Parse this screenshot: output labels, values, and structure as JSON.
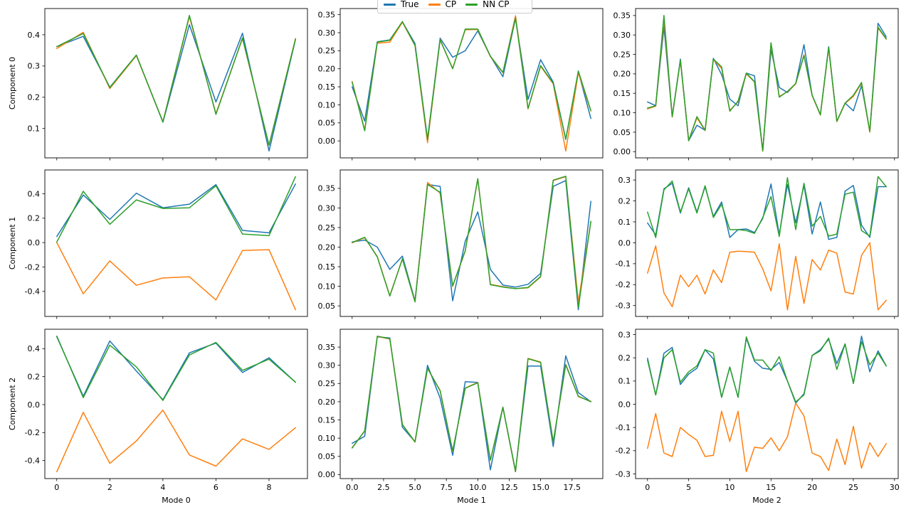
{
  "figure": {
    "background": "#ffffff",
    "legend": {
      "position": "top-center",
      "items": [
        {
          "label": "True",
          "color": "#1f77b4"
        },
        {
          "label": "CP",
          "color": "#ff7f0e"
        },
        {
          "label": "NN CP",
          "color": "#2ca02c"
        }
      ]
    }
  },
  "chart_data": [
    {
      "type": "line",
      "row": 0,
      "col": 0,
      "ylabel": "Component 0",
      "xlabel": "",
      "xlim": [
        -0.45,
        9.45
      ],
      "ylim": [
        0.006,
        0.484
      ],
      "xticks": [
        0,
        2,
        4,
        6,
        8
      ],
      "xtick_labels": null,
      "yticks": [
        0.1,
        0.2,
        0.3,
        0.4
      ],
      "ytick_labels": [
        "0.1",
        "0.2",
        "0.3",
        "0.4"
      ],
      "grid": false,
      "series": [
        {
          "name": "True",
          "color": "#1f77b4",
          "values": [
            0.362,
            0.395,
            0.232,
            0.335,
            0.12,
            0.432,
            0.185,
            0.405,
            0.028,
            0.385
          ]
        },
        {
          "name": "CP",
          "color": "#ff7f0e",
          "values": [
            0.356,
            0.408,
            0.228,
            0.333,
            0.122,
            0.458,
            0.148,
            0.388,
            0.046,
            0.388
          ]
        },
        {
          "name": "NN CP",
          "color": "#2ca02c",
          "values": [
            0.362,
            0.404,
            0.231,
            0.335,
            0.121,
            0.462,
            0.145,
            0.39,
            0.047,
            0.386
          ]
        }
      ]
    },
    {
      "type": "line",
      "row": 0,
      "col": 1,
      "ylabel": "",
      "xlabel": "",
      "xlim": [
        -0.95,
        19.95
      ],
      "ylim": [
        -0.047,
        0.367
      ],
      "xticks": [
        0,
        5,
        10,
        15
      ],
      "xtick_labels": null,
      "yticks": [
        0.0,
        0.05,
        0.1,
        0.15,
        0.2,
        0.25,
        0.3,
        0.35
      ],
      "ytick_labels": [
        "0.00",
        "0.05",
        "0.10",
        "0.15",
        "0.20",
        "0.25",
        "0.30",
        "0.35"
      ],
      "grid": false,
      "series": [
        {
          "name": "True",
          "color": "#1f77b4",
          "values": [
            0.15,
            0.055,
            0.275,
            0.28,
            0.33,
            0.27,
            0.005,
            0.285,
            0.232,
            0.25,
            0.305,
            0.235,
            0.178,
            0.34,
            0.115,
            0.225,
            0.163,
            0.005,
            0.192,
            0.062
          ]
        },
        {
          "name": "CP",
          "color": "#ff7f0e",
          "values": [
            0.165,
            0.03,
            0.271,
            0.274,
            0.329,
            0.264,
            -0.005,
            0.281,
            0.201,
            0.308,
            0.309,
            0.234,
            0.189,
            0.347,
            0.089,
            0.207,
            0.158,
            -0.028,
            0.189,
            0.083
          ]
        },
        {
          "name": "NN CP",
          "color": "#2ca02c",
          "values": [
            0.163,
            0.028,
            0.274,
            0.279,
            0.331,
            0.265,
            0.004,
            0.28,
            0.2,
            0.31,
            0.31,
            0.235,
            0.19,
            0.341,
            0.09,
            0.209,
            0.16,
            0.004,
            0.194,
            0.084
          ]
        }
      ]
    },
    {
      "type": "line",
      "row": 0,
      "col": 2,
      "ylabel": "",
      "xlabel": "",
      "xlim": [
        -1.45,
        30.45
      ],
      "ylim": [
        -0.016,
        0.368
      ],
      "xticks": [
        0,
        5,
        10,
        15,
        20,
        25,
        30
      ],
      "xtick_labels": null,
      "yticks": [
        0.0,
        0.05,
        0.1,
        0.15,
        0.2,
        0.25,
        0.3,
        0.35
      ],
      "ytick_labels": [
        "0.00",
        "0.05",
        "0.10",
        "0.15",
        "0.20",
        "0.25",
        "0.30",
        "0.35"
      ],
      "grid": false,
      "series": [
        {
          "name": "True",
          "color": "#1f77b4",
          "values": [
            0.128,
            0.118,
            0.32,
            0.09,
            0.238,
            0.028,
            0.068,
            0.055,
            0.24,
            0.198,
            0.135,
            0.118,
            0.202,
            0.195,
            0.002,
            0.262,
            0.165,
            0.152,
            0.175,
            0.275,
            0.145,
            0.095,
            0.27,
            0.078,
            0.125,
            0.105,
            0.17,
            0.052,
            0.33,
            0.295
          ]
        },
        {
          "name": "CP",
          "color": "#ff7f0e",
          "values": [
            0.11,
            0.117,
            0.34,
            0.089,
            0.234,
            0.028,
            0.087,
            0.054,
            0.237,
            0.214,
            0.106,
            0.128,
            0.2,
            0.179,
            0.001,
            0.277,
            0.142,
            0.154,
            0.174,
            0.249,
            0.144,
            0.094,
            0.266,
            0.077,
            0.124,
            0.142,
            0.176,
            0.05,
            0.318,
            0.289
          ]
        },
        {
          "name": "NN CP",
          "color": "#2ca02c",
          "values": [
            0.112,
            0.118,
            0.35,
            0.09,
            0.235,
            0.028,
            0.09,
            0.055,
            0.238,
            0.218,
            0.104,
            0.13,
            0.202,
            0.18,
            0.002,
            0.28,
            0.14,
            0.155,
            0.175,
            0.247,
            0.145,
            0.095,
            0.268,
            0.078,
            0.125,
            0.145,
            0.178,
            0.052,
            0.32,
            0.29
          ]
        }
      ]
    },
    {
      "type": "line",
      "row": 1,
      "col": 0,
      "ylabel": "Component 1",
      "xlabel": "",
      "xlim": [
        -0.45,
        9.45
      ],
      "ylim": [
        -0.605,
        0.595
      ],
      "xticks": [
        0,
        2,
        4,
        6,
        8
      ],
      "xtick_labels": null,
      "yticks": [
        -0.4,
        -0.2,
        0.0,
        0.2,
        0.4
      ],
      "ytick_labels": [
        "-0.4",
        "-0.2",
        "0.0",
        "0.2",
        "0.4"
      ],
      "grid": false,
      "series": [
        {
          "name": "True",
          "color": "#1f77b4",
          "values": [
            0.05,
            0.39,
            0.19,
            0.405,
            0.285,
            0.315,
            0.475,
            0.1,
            0.08,
            0.48
          ]
        },
        {
          "name": "CP",
          "color": "#ff7f0e",
          "values": [
            0.0,
            -0.42,
            -0.15,
            -0.35,
            -0.29,
            -0.28,
            -0.47,
            -0.065,
            -0.058,
            -0.55
          ]
        },
        {
          "name": "NN CP",
          "color": "#2ca02c",
          "values": [
            0.005,
            0.42,
            0.15,
            0.35,
            0.28,
            0.285,
            0.465,
            0.07,
            0.057,
            0.54
          ]
        }
      ]
    },
    {
      "type": "line",
      "row": 1,
      "col": 1,
      "ylabel": "",
      "xlabel": "",
      "xlim": [
        -0.95,
        19.95
      ],
      "ylim": [
        0.023,
        0.397
      ],
      "xticks": [
        0,
        5,
        10,
        15
      ],
      "xtick_labels": null,
      "yticks": [
        0.05,
        0.1,
        0.15,
        0.2,
        0.25,
        0.3,
        0.35
      ],
      "ytick_labels": [
        "0.05",
        "0.10",
        "0.15",
        "0.20",
        "0.25",
        "0.30",
        "0.35"
      ],
      "grid": false,
      "series": [
        {
          "name": "True",
          "color": "#1f77b4",
          "values": [
            0.213,
            0.218,
            0.2,
            0.143,
            0.177,
            0.063,
            0.36,
            0.355,
            0.063,
            0.215,
            0.29,
            0.143,
            0.103,
            0.098,
            0.105,
            0.133,
            0.355,
            0.37,
            0.04,
            0.317
          ]
        },
        {
          "name": "CP",
          "color": "#ff7f0e",
          "values": [
            0.211,
            0.224,
            0.176,
            0.076,
            0.17,
            0.061,
            0.365,
            0.338,
            0.1,
            0.19,
            0.374,
            0.105,
            0.099,
            0.094,
            0.096,
            0.124,
            0.37,
            0.38,
            0.06,
            0.265
          ]
        },
        {
          "name": "NN CP",
          "color": "#2ca02c",
          "values": [
            0.212,
            0.225,
            0.175,
            0.075,
            0.17,
            0.06,
            0.36,
            0.34,
            0.101,
            0.191,
            0.375,
            0.104,
            0.098,
            0.094,
            0.097,
            0.125,
            0.371,
            0.381,
            0.046,
            0.266
          ]
        }
      ]
    },
    {
      "type": "line",
      "row": 1,
      "col": 2,
      "ylabel": "",
      "xlabel": "",
      "xlim": [
        -1.45,
        30.45
      ],
      "ylim": [
        -0.352,
        0.348
      ],
      "xticks": [
        0,
        5,
        10,
        15,
        20,
        25,
        30
      ],
      "xtick_labels": null,
      "yticks": [
        -0.3,
        -0.2,
        -0.1,
        0.0,
        0.1,
        0.2,
        0.3
      ],
      "ytick_labels": [
        "-0.3",
        "-0.2",
        "-0.1",
        "0.0",
        "0.1",
        "0.2",
        "0.3"
      ],
      "grid": false,
      "series": [
        {
          "name": "True",
          "color": "#1f77b4",
          "values": [
            0.095,
            0.037,
            0.258,
            0.284,
            0.142,
            0.263,
            0.147,
            0.268,
            0.126,
            0.195,
            0.026,
            0.063,
            0.066,
            0.049,
            0.116,
            0.281,
            0.037,
            0.279,
            0.095,
            0.274,
            0.042,
            0.195,
            0.016,
            0.026,
            0.247,
            0.274,
            0.084,
            0.026,
            0.268,
            0.268
          ]
        },
        {
          "name": "CP",
          "color": "#ff7f0e",
          "values": [
            -0.145,
            -0.015,
            -0.24,
            -0.305,
            -0.155,
            -0.21,
            -0.155,
            -0.245,
            -0.13,
            -0.19,
            -0.045,
            -0.04,
            -0.042,
            -0.045,
            -0.125,
            -0.23,
            -0.005,
            -0.32,
            -0.065,
            -0.29,
            -0.08,
            -0.13,
            -0.035,
            -0.05,
            -0.235,
            -0.245,
            -0.06,
            0.0,
            -0.32,
            -0.275
          ]
        },
        {
          "name": "NN CP",
          "color": "#2ca02c",
          "values": [
            0.147,
            0.025,
            0.253,
            0.295,
            0.147,
            0.258,
            0.142,
            0.273,
            0.121,
            0.184,
            0.063,
            0.063,
            0.058,
            0.045,
            0.121,
            0.221,
            0.03,
            0.311,
            0.063,
            0.284,
            0.079,
            0.126,
            0.032,
            0.042,
            0.232,
            0.242,
            0.058,
            0.032,
            0.316,
            0.268
          ]
        }
      ]
    },
    {
      "type": "line",
      "row": 2,
      "col": 0,
      "ylabel": "Component 2",
      "xlabel": "Mode 0",
      "xlim": [
        -0.45,
        9.45
      ],
      "ylim": [
        -0.529,
        0.539
      ],
      "xticks": [
        0,
        2,
        4,
        6,
        8
      ],
      "xtick_labels": [
        "0",
        "2",
        "4",
        "6",
        "8"
      ],
      "yticks": [
        -0.4,
        -0.2,
        0.0,
        0.2,
        0.4
      ],
      "ytick_labels": [
        "-0.4",
        "-0.2",
        "0.0",
        "0.2",
        "0.4"
      ],
      "grid": false,
      "series": [
        {
          "name": "True",
          "color": "#1f77b4",
          "values": [
            0.485,
            0.06,
            0.455,
            0.24,
            0.035,
            0.37,
            0.44,
            0.23,
            0.335,
            0.16
          ]
        },
        {
          "name": "CP",
          "color": "#ff7f0e",
          "values": [
            -0.48,
            -0.055,
            -0.42,
            -0.26,
            -0.04,
            -0.36,
            -0.44,
            -0.245,
            -0.32,
            -0.165
          ]
        },
        {
          "name": "NN CP",
          "color": "#2ca02c",
          "values": [
            0.49,
            0.05,
            0.425,
            0.27,
            0.03,
            0.355,
            0.445,
            0.245,
            0.325,
            0.16
          ]
        }
      ]
    },
    {
      "type": "line",
      "row": 2,
      "col": 1,
      "ylabel": "",
      "xlabel": "Mode 1",
      "xlim": [
        -0.95,
        19.95
      ],
      "ylim": [
        -0.011,
        0.399
      ],
      "xticks": [
        0,
        2.5,
        5,
        7.5,
        10,
        12.5,
        15,
        17.5
      ],
      "xtick_labels": [
        "0.0",
        "2.5",
        "5.0",
        "7.5",
        "10.0",
        "12.5",
        "15.0",
        "17.5"
      ],
      "yticks": [
        0.0,
        0.05,
        0.1,
        0.15,
        0.2,
        0.25,
        0.3,
        0.35
      ],
      "ytick_labels": [
        "0.00",
        "0.05",
        "0.10",
        "0.15",
        "0.20",
        "0.25",
        "0.30",
        "0.35"
      ],
      "grid": false,
      "series": [
        {
          "name": "True",
          "color": "#1f77b4",
          "values": [
            0.086,
            0.105,
            0.378,
            0.375,
            0.13,
            0.09,
            0.3,
            0.21,
            0.053,
            0.255,
            0.253,
            0.013,
            0.185,
            0.01,
            0.298,
            0.298,
            0.077,
            0.326,
            0.225,
            0.2
          ]
        },
        {
          "name": "CP",
          "color": "#ff7f0e",
          "values": [
            0.074,
            0.119,
            0.379,
            0.372,
            0.138,
            0.089,
            0.291,
            0.231,
            0.064,
            0.238,
            0.253,
            0.039,
            0.184,
            0.008,
            0.319,
            0.309,
            0.089,
            0.303,
            0.214,
            0.201
          ]
        },
        {
          "name": "NN CP",
          "color": "#2ca02c",
          "values": [
            0.073,
            0.12,
            0.38,
            0.373,
            0.137,
            0.09,
            0.292,
            0.23,
            0.065,
            0.237,
            0.252,
            0.04,
            0.185,
            0.008,
            0.318,
            0.308,
            0.09,
            0.301,
            0.215,
            0.2
          ]
        }
      ]
    },
    {
      "type": "line",
      "row": 2,
      "col": 2,
      "ylabel": "",
      "xlabel": "Mode 2",
      "xlim": [
        -1.45,
        30.45
      ],
      "ylim": [
        -0.32,
        0.323
      ],
      "xticks": [
        0,
        5,
        10,
        15,
        20,
        25,
        30
      ],
      "xtick_labels": [
        "0",
        "5",
        "10",
        "15",
        "20",
        "25",
        "30"
      ],
      "yticks": [
        -0.3,
        -0.2,
        -0.1,
        0.0,
        0.1,
        0.2,
        0.3
      ],
      "ytick_labels": [
        "-0.3",
        "-0.2",
        "-0.1",
        "0.0",
        "0.1",
        "0.2",
        "0.3"
      ],
      "grid": false,
      "series": [
        {
          "name": "True",
          "color": "#1f77b4",
          "values": [
            0.198,
            0.04,
            0.22,
            0.245,
            0.085,
            0.13,
            0.155,
            0.235,
            0.195,
            0.03,
            0.16,
            0.03,
            0.285,
            0.185,
            0.155,
            0.15,
            0.18,
            0.1,
            0.005,
            0.045,
            0.21,
            0.235,
            0.28,
            0.175,
            0.26,
            0.09,
            0.293,
            0.14,
            0.23,
            0.165
          ]
        },
        {
          "name": "CP",
          "color": "#ff7f0e",
          "values": [
            -0.19,
            -0.04,
            -0.21,
            -0.225,
            -0.1,
            -0.13,
            -0.155,
            -0.225,
            -0.22,
            -0.03,
            -0.16,
            -0.03,
            -0.29,
            -0.185,
            -0.19,
            -0.145,
            -0.2,
            -0.14,
            0.005,
            -0.05,
            -0.21,
            -0.225,
            -0.285,
            -0.15,
            -0.26,
            -0.095,
            -0.275,
            -0.165,
            -0.225,
            -0.17
          ]
        },
        {
          "name": "NN CP",
          "color": "#2ca02c",
          "values": [
            0.19,
            0.04,
            0.2,
            0.235,
            0.095,
            0.14,
            0.165,
            0.235,
            0.22,
            0.03,
            0.16,
            0.03,
            0.29,
            0.19,
            0.19,
            0.145,
            0.205,
            0.1,
            0.01,
            0.04,
            0.21,
            0.23,
            0.285,
            0.15,
            0.26,
            0.09,
            0.27,
            0.17,
            0.22,
            0.165
          ]
        }
      ]
    }
  ]
}
